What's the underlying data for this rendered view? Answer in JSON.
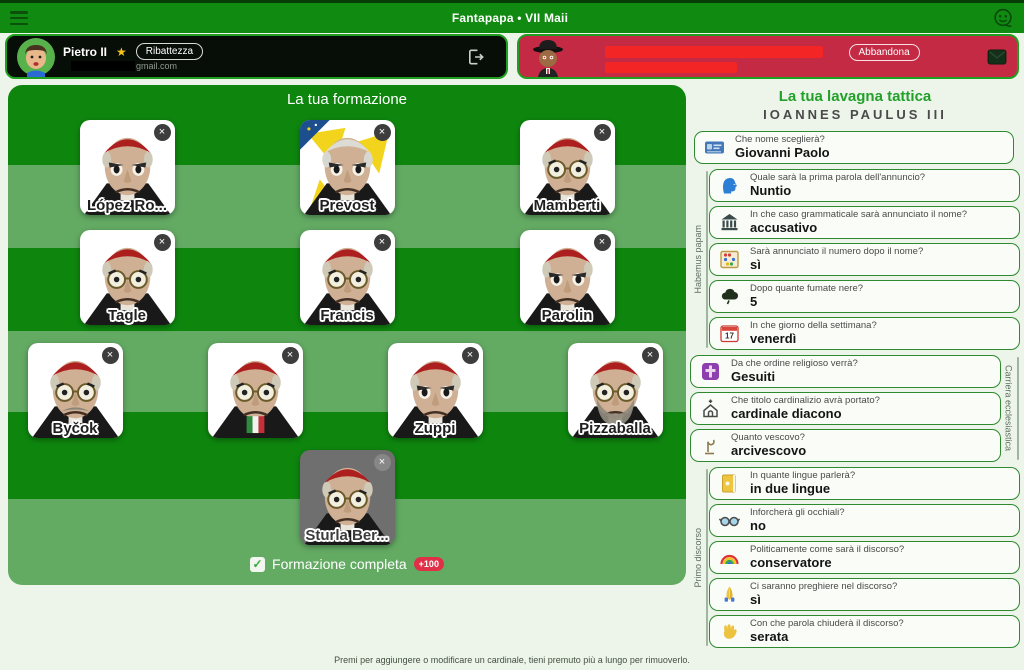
{
  "topbar": {
    "title": "Fantapapa • VII Maii"
  },
  "players": {
    "self": {
      "name": "Pietro II",
      "badge": "★",
      "action_label": "Ribattezza",
      "email_visible": "gmail.com"
    },
    "opponent": {
      "action_label": "Abbandona",
      "name_redacted": true
    }
  },
  "formation": {
    "title": "La tua formazione",
    "rows": [
      [
        {
          "name": "López Ro...",
          "look": "plain"
        },
        {
          "name": "Prevost",
          "look": "prevost"
        },
        {
          "name": "Mamberti",
          "look": "glasses"
        }
      ],
      [
        {
          "name": "Tagle",
          "look": "glasses"
        },
        {
          "name": "Francis",
          "look": "glasses"
        },
        {
          "name": "Parolin",
          "look": "plain"
        }
      ],
      [
        {
          "name": "Byčok",
          "look": "glasses mustache"
        },
        {
          "name": "",
          "look": "glasses flag"
        },
        {
          "name": "Zuppi",
          "look": "plain"
        },
        {
          "name": "Pizzaballa",
          "look": "glasses beard"
        }
      ],
      [
        {
          "name": "Sturla Ber...",
          "look": "glasses",
          "gray": true
        }
      ]
    ],
    "complete_label": "Formazione completa",
    "bonus_label": "+100"
  },
  "tactics": {
    "title": "La tua lavagna tattica",
    "subtitle": "IOANNES PAULUS III",
    "groups": [
      {
        "label": "",
        "side": "",
        "cards": [
          {
            "icon": "id-card-icon",
            "question": "Che nome sceglierà?",
            "answer": "Giovanni Paolo"
          }
        ]
      },
      {
        "label": "Habemus papam",
        "side": "left",
        "cards": [
          {
            "icon": "speaking-head-icon",
            "question": "Quale sarà la prima parola dell'annuncio?",
            "answer": "Nuntio"
          },
          {
            "icon": "bank-icon",
            "question": "In che caso grammaticale sarà annunciato il nome?",
            "answer": "accusativo"
          },
          {
            "icon": "abacus-icon",
            "question": "Sarà annunciato il numero dopo il nome?",
            "answer": "sì"
          },
          {
            "icon": "black-cloud-icon",
            "question": "Dopo quante fumate nere?",
            "answer": "5"
          },
          {
            "icon": "calendar-icon",
            "question": "In che giorno della settimana?",
            "answer": "venerdì"
          }
        ]
      },
      {
        "label": "Carriera ecclesiastica",
        "side": "right",
        "cards": [
          {
            "icon": "cross-icon",
            "question": "Da che ordine religioso verrà?",
            "answer": "Gesuiti"
          },
          {
            "icon": "church-icon",
            "question": "Che titolo cardinalizio avrà portato?",
            "answer": "cardinale diacono"
          },
          {
            "icon": "bishop-icon",
            "question": "Quanto vescovo?",
            "answer": "arcivescovo"
          }
        ]
      },
      {
        "label": "Primo discorso",
        "side": "left",
        "cards": [
          {
            "icon": "notebook-icon",
            "question": "In quante lingue parlerà?",
            "answer": "in due lingue"
          },
          {
            "icon": "glasses-icon",
            "question": "Inforcherà gli occhiali?",
            "answer": "no"
          },
          {
            "icon": "rainbow-icon",
            "question": "Politicamente come sarà il discorso?",
            "answer": "conservatore"
          },
          {
            "icon": "praying-hands-icon",
            "question": "Ci saranno preghiere nel discorso?",
            "answer": "sì"
          },
          {
            "icon": "waving-hand-icon",
            "question": "Con che parola chiuderà il discorso?",
            "answer": "serata"
          }
        ]
      }
    ]
  },
  "footer": {
    "hint": "Premi per aggiungere o modificare un cardinale, tieni premuto più a lungo per rimuoverlo."
  },
  "colors": {
    "pitch_dark": "#0e860e",
    "pitch_light": "#63aa63",
    "topbar_green": "#118a11",
    "self_card_bg": "#070d07",
    "opponent_card_bg": "#c52a44",
    "accent_green": "#22a02a",
    "bonus_red": "#e03048",
    "redaction_red": "#f32525",
    "close_button_gray": "#3d3d3d"
  }
}
